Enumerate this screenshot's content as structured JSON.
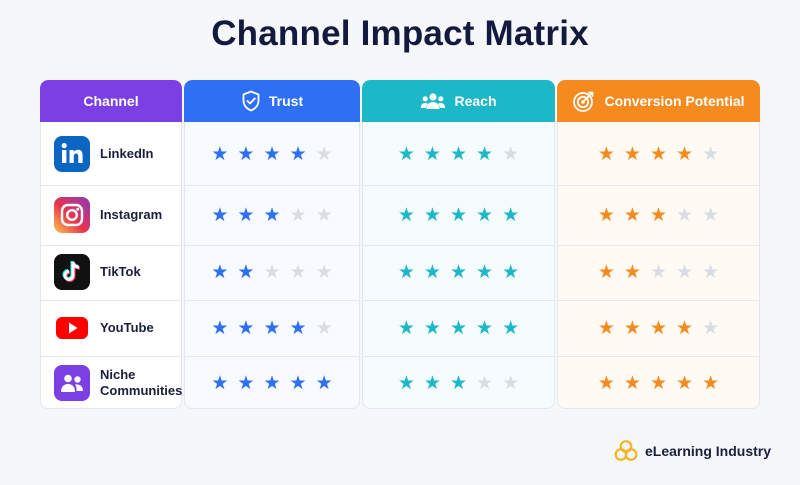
{
  "title": "Channel Impact Matrix",
  "colors": {
    "channel": "#7b3fe4",
    "trust": "#2f6ff3",
    "reach": "#1cb8c8",
    "conversion": "#f58a1f",
    "star_off": "#dadce3"
  },
  "headers": {
    "channel": "Channel",
    "trust": "Trust",
    "reach": "Reach",
    "conversion": "Conversion Potential"
  },
  "header_icons": {
    "trust": "shield-check-icon",
    "reach": "people-group-icon",
    "conversion": "target-icon"
  },
  "max_stars": 5,
  "rows": [
    {
      "name": "LinkedIn",
      "icon": "linkedin-logo-icon",
      "trust": 4,
      "reach": 4,
      "conversion": 4
    },
    {
      "name": "Instagram",
      "icon": "instagram-logo-icon",
      "trust": 3,
      "reach": 5,
      "conversion": 3
    },
    {
      "name": "TikTok",
      "icon": "tiktok-logo-icon",
      "trust": 2,
      "reach": 5,
      "conversion": 2
    },
    {
      "name": "YouTube",
      "icon": "youtube-logo-icon",
      "trust": 4,
      "reach": 5,
      "conversion": 4
    },
    {
      "name": "Niche\nCommunities",
      "icon": "community-group-icon",
      "trust": 5,
      "reach": 3,
      "conversion": 5
    }
  ],
  "brand": {
    "name": "eLearning Industry",
    "icon": "elearning-industry-logo-icon"
  }
}
